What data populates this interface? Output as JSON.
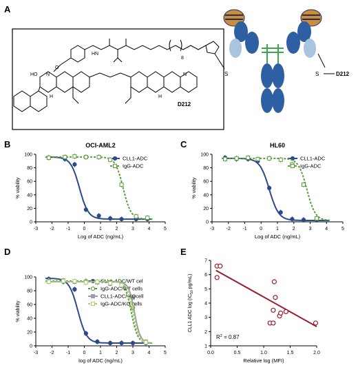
{
  "panels": {
    "A": {
      "letter": "A",
      "compound_label": "D212",
      "linker_label": "D212",
      "mol_labels": {
        "s1": "S",
        "s2": "S",
        "n8": "8",
        "hn": "HN",
        "nh1": "N",
        "nh2": "N",
        "ho": "HO",
        "n1": "N",
        "n2": "N",
        "h1": "H",
        "h2": "H",
        "o": "O"
      }
    },
    "B": {
      "letter": "B"
    },
    "C": {
      "letter": "C"
    },
    "D": {
      "letter": "D"
    },
    "E": {
      "letter": "E"
    }
  },
  "colors": {
    "blue": "#2a4a8c",
    "green": "#5a9e3a",
    "lightgreen": "#a9cf6a",
    "gray": "#9aa0a8",
    "red": "#9c1c2c",
    "antibody_blue": "#2e5fa3",
    "antibody_light": "#a9c3e0",
    "fab_tip": "#c98e3a",
    "fab_dark": "#2a2a5a",
    "hinge": "#3aa84a"
  },
  "chart_data": [
    {
      "id": "B",
      "type": "line",
      "title": "OCI-AML2",
      "xlabel": "Log of ADC (ng/mL)",
      "ylabel": "% viability",
      "xlim": [
        -3,
        5
      ],
      "ylim": [
        0,
        100
      ],
      "xticks": [
        -3,
        -2,
        -1,
        0,
        1,
        2,
        3,
        4,
        5
      ],
      "yticks": [
        0,
        20,
        40,
        60,
        80,
        100
      ],
      "legend": "top-right",
      "series": [
        {
          "name": "CLL1-ADC",
          "style": "solid-circle",
          "color": "#2a4a8c",
          "x": [
            -2.2,
            -1.2,
            -0.6,
            0.1,
            0.9,
            1.6,
            2.3,
            3.2,
            3.9
          ],
          "y": [
            95,
            93,
            85,
            18,
            9,
            5,
            4,
            4,
            4
          ],
          "fit": {
            "top": 96,
            "bottom": 4,
            "ec50": -0.3,
            "hill": 1.6
          }
        },
        {
          "name": "IgG-ADC",
          "style": "dashed-square",
          "color": "#5a9e3a",
          "x": [
            -2.2,
            -1.2,
            -0.6,
            0.1,
            0.9,
            1.6,
            2.3,
            3.2,
            3.9
          ],
          "y": [
            95,
            96,
            97,
            96,
            96,
            92,
            55,
            8,
            6
          ],
          "fit": {
            "top": 96,
            "bottom": 4,
            "ec50": 2.4,
            "hill": 1.8
          }
        }
      ]
    },
    {
      "id": "C",
      "type": "line",
      "title": "HL60",
      "xlabel": "Log of ADC (ng/mL)",
      "ylabel": "% viability",
      "xlim": [
        -3,
        5
      ],
      "ylim": [
        0,
        100
      ],
      "xticks": [
        -3,
        -2,
        -1,
        0,
        1,
        2,
        3,
        4,
        5
      ],
      "yticks": [
        0,
        20,
        40,
        60,
        80,
        100
      ],
      "legend": "top-right",
      "series": [
        {
          "name": "CLL1-ADC",
          "style": "solid-circle",
          "color": "#2a4a8c",
          "x": [
            -2.2,
            -1.5,
            -0.8,
            -0.2,
            0.5,
            1.2,
            1.9,
            2.6,
            3.4
          ],
          "y": [
            95,
            93,
            93,
            90,
            50,
            14,
            4,
            3,
            3
          ],
          "fit": {
            "top": 94,
            "bottom": 2,
            "ec50": 0.5,
            "hill": 1.5
          }
        },
        {
          "name": "IgG-ADC",
          "style": "dashed-square",
          "color": "#5a9e3a",
          "x": [
            -2.2,
            -1.5,
            -0.8,
            -0.2,
            0.5,
            1.2,
            1.9,
            2.6,
            3.4
          ],
          "y": [
            93,
            94,
            95,
            93,
            94,
            92,
            85,
            55,
            5
          ],
          "fit": {
            "top": 94,
            "bottom": 2,
            "ec50": 2.8,
            "hill": 1.7
          }
        }
      ]
    },
    {
      "id": "D",
      "type": "line",
      "xlabel": "log of ADC (ng/mL)",
      "ylabel": "% viability",
      "xlim": [
        -3,
        5
      ],
      "ylim": [
        0,
        100
      ],
      "xticks": [
        -3,
        -2,
        -1,
        0,
        1,
        2,
        3,
        4,
        5
      ],
      "yticks": [
        0,
        20,
        40,
        60,
        80,
        100
      ],
      "legend": "top-right",
      "series": [
        {
          "name": "CLL1-ADC/WT cel",
          "style": "solid-circle",
          "color": "#2a4a8c",
          "x": [
            -2.2,
            -1.3,
            -0.6,
            0.1,
            0.8,
            1.6,
            2.3,
            3.0,
            3.8
          ],
          "y": [
            97,
            93,
            82,
            18,
            6,
            4,
            4,
            4,
            4
          ],
          "fit": {
            "top": 98,
            "bottom": 4,
            "ec50": -0.4,
            "hill": 1.6
          }
        },
        {
          "name": "IgG-ADC/WT cells",
          "style": "dashed-circle",
          "color": "#5a9e3a",
          "x": [
            -2.2,
            -1.3,
            -0.6,
            0.1,
            0.8,
            1.6,
            2.3,
            3.0,
            3.8
          ],
          "y": [
            95,
            94,
            93,
            94,
            93,
            92,
            90,
            55,
            5
          ],
          "fit": {
            "top": 94,
            "bottom": 4,
            "ec50": 2.9,
            "hill": 2.2
          }
        },
        {
          "name": "CLL1-ADC/ KOcell",
          "style": "solid-square",
          "color": "#9aa0a8",
          "x": [
            -2.2,
            -1.3,
            -0.6,
            0.1,
            0.8,
            1.6,
            2.3,
            3.0,
            3.8
          ],
          "y": [
            94,
            95,
            93,
            93,
            92,
            90,
            88,
            70,
            6
          ],
          "fit": {
            "top": 93,
            "bottom": 4,
            "ec50": 3.1,
            "hill": 2.4
          }
        },
        {
          "name": "IgG-ADC/KO cells",
          "style": "dashed-square",
          "color": "#a9cf6a",
          "x": [
            -2.2,
            -1.3,
            -0.6,
            0.1,
            0.8,
            1.6,
            2.3,
            3.0,
            3.8
          ],
          "y": [
            93,
            94,
            94,
            92,
            93,
            91,
            88,
            60,
            5
          ],
          "fit": {
            "top": 93,
            "bottom": 4,
            "ec50": 3.0,
            "hill": 2.3
          }
        }
      ]
    },
    {
      "id": "E",
      "type": "scatter",
      "xlabel": "Relative log (MFI)",
      "ylabel": "CLL1 ADC log (IC50 pg/mL)",
      "ylabel_parts": {
        "pre": "CLL1 ADC log (IC",
        "sub": "50",
        "post": " pg/mL)"
      },
      "xlim": [
        0,
        2.0
      ],
      "ylim": [
        1,
        7
      ],
      "xticks": [
        0.0,
        0.5,
        1.0,
        1.5,
        2.0
      ],
      "yticks": [
        1,
        2,
        3,
        4,
        5,
        6,
        7
      ],
      "annotation_parts": {
        "pre": "R",
        "sup": "2",
        "post": " = 0.87"
      },
      "series": [
        {
          "name": "",
          "style": "open-circle",
          "color": "#9c1c2c",
          "x": [
            0.12,
            0.18,
            0.12,
            1.12,
            1.18,
            1.2,
            1.22,
            1.3,
            1.32,
            1.42,
            1.98,
            1.18
          ],
          "y": [
            6.6,
            6.6,
            5.8,
            2.6,
            2.6,
            5.5,
            4.4,
            3.1,
            3.3,
            3.4,
            2.6,
            3.5
          ]
        }
      ],
      "regression": {
        "x": [
          0.1,
          2.0
        ],
        "y": [
          6.3,
          2.35
        ]
      }
    }
  ]
}
